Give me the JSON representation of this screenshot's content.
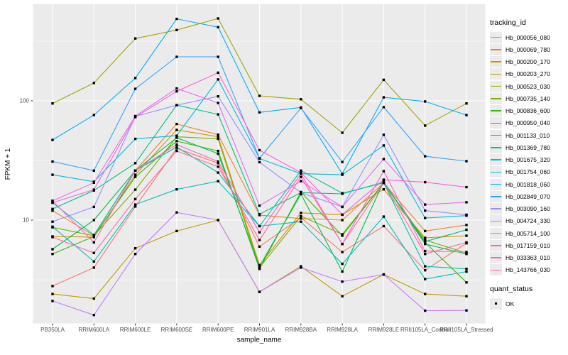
{
  "y_axis": {
    "label": "FPKM + 1",
    "ticks": [
      "100",
      "10"
    ]
  },
  "x_axis": {
    "label": "sample_name"
  },
  "legend": {
    "tracking_title": "tracking_id",
    "quant_title": "quant_status",
    "quant_items": [
      {
        "label": "OK",
        "marker": "black-square"
      }
    ]
  },
  "chart_data": {
    "type": "line",
    "title": "",
    "xlabel": "sample_name",
    "ylabel": "FPKM + 1",
    "y_scale": "log10",
    "ylim": [
      1.25,
      620
    ],
    "yticks": [
      10,
      100
    ],
    "yticks_minor": [
      3.16,
      31.6,
      316
    ],
    "grid": "on",
    "legend_position": "right",
    "point_marker": "black-square",
    "categories": [
      "PB350LA",
      "RRIM600LA",
      "RRIM600LE",
      "RRIM600SE",
      "RRIM600PE",
      "RRIM901LA",
      "RRIM928BA",
      "RRIM928LA",
      "RRIM928LE",
      "RRII105LA_Control",
      "RRII105LA_Stressed"
    ],
    "series": [
      {
        "name": "Hb_000056_080",
        "color": "#F8766D",
        "values": [
          2.8,
          4.0,
          13,
          40,
          30,
          6.0,
          10.5,
          5.4,
          8.9,
          3.8,
          6.4
        ]
      },
      {
        "name": "Hb_000069_780",
        "color": "#EA8331",
        "values": [
          12,
          7.4,
          26,
          64,
          52,
          11,
          10.3,
          10,
          20.5,
          8.1,
          9.1
        ]
      },
      {
        "name": "Hb_000200_170",
        "color": "#D89000",
        "values": [
          7.3,
          7.2,
          24,
          57,
          50,
          4.2,
          11.5,
          11.1,
          18.1,
          7.1,
          7.4
        ]
      },
      {
        "name": "Hb_000203_270",
        "color": "#C09B00",
        "values": [
          2.4,
          2.2,
          5.8,
          8.1,
          10,
          2.5,
          4.1,
          2.3,
          3.5,
          2.4,
          2.3
        ]
      },
      {
        "name": "Hb_000523_030",
        "color": "#A3A500",
        "values": [
          95,
          141,
          333,
          392,
          490,
          110,
          103,
          54,
          150,
          62,
          95
        ]
      },
      {
        "name": "Hb_000735_140",
        "color": "#7CAE00",
        "values": [
          8.7,
          7.4,
          18,
          50,
          48,
          4.0,
          10.8,
          7.6,
          20.5,
          6.8,
          5.3
        ]
      },
      {
        "name": "Hb_000836_600",
        "color": "#39B600",
        "values": [
          5.2,
          7.3,
          23,
          46,
          38,
          3.9,
          17.2,
          7.4,
          20.5,
          6.5,
          3.0
        ]
      },
      {
        "name": "Hb_000950_040",
        "color": "#00BB4E",
        "values": [
          5.7,
          10,
          26,
          49,
          36,
          4.1,
          16.5,
          3.7,
          21,
          6.3,
          5.2
        ]
      },
      {
        "name": "Hb_001133_010",
        "color": "#00BF7D",
        "values": [
          12.4,
          17.7,
          30,
          92,
          77,
          11.2,
          17,
          16.6,
          20.8,
          6.6,
          8.3
        ]
      },
      {
        "name": "Hb_001369_780",
        "color": "#00C1A3",
        "values": [
          14,
          7.5,
          26,
          41,
          25,
          8.9,
          26,
          16.8,
          20.5,
          4.1,
          3.9
        ]
      },
      {
        "name": "Hb_001675_320",
        "color": "#00BFC4",
        "values": [
          8.8,
          4.5,
          13.5,
          18.1,
          21.2,
          8.9,
          9.7,
          4.3,
          10.7,
          3.2,
          3.7
        ]
      },
      {
        "name": "Hb_001754_060",
        "color": "#00BAE0",
        "values": [
          24,
          21,
          48,
          51,
          151,
          32.8,
          24.5,
          24,
          42.2,
          10.4,
          10.9
        ]
      },
      {
        "name": "Hb_001818_060",
        "color": "#00B0F6",
        "values": [
          47,
          76,
          155,
          486,
          414,
          80,
          88,
          24.4,
          107,
          98.8,
          75.9
        ]
      },
      {
        "name": "Hb_002849_070",
        "color": "#35A2FF",
        "values": [
          31,
          26,
          126,
          234,
          234,
          33,
          87,
          30.7,
          88.5,
          34.3,
          31.2
        ]
      },
      {
        "name": "Hb_003090_160",
        "color": "#9590FF",
        "values": [
          9.7,
          12.9,
          74,
          92,
          109,
          30.6,
          17,
          12.9,
          51.9,
          12,
          11.1
        ]
      },
      {
        "name": "Hb_004724_330",
        "color": "#C77CFF",
        "values": [
          2.1,
          1.6,
          5.2,
          11.6,
          10,
          2.5,
          4.0,
          3.05,
          3.5,
          1.74,
          1.75
        ]
      },
      {
        "name": "Hb_005714_100",
        "color": "#E76BF3",
        "values": [
          14.5,
          20.6,
          74.5,
          127,
          96,
          13.2,
          21.2,
          12.9,
          32.5,
          13.5,
          14.1
        ]
      },
      {
        "name": "Hb_017159_010",
        "color": "#FA62DB",
        "values": [
          14,
          18,
          73,
          120,
          172,
          38.6,
          25,
          11.1,
          21.8,
          20.8,
          18.9
        ]
      },
      {
        "name": "Hb_033363_010",
        "color": "#FF61C9",
        "values": [
          14.5,
          6.5,
          26,
          43,
          31,
          7.9,
          24.5,
          6.3,
          25.7,
          5.5,
          5.4
        ]
      },
      {
        "name": "Hb_143766_030",
        "color": "#FF67A4",
        "values": [
          7.2,
          5.3,
          15,
          38,
          28,
          6.8,
          23,
          6.3,
          20.5,
          5.2,
          6.5
        ]
      }
    ]
  }
}
